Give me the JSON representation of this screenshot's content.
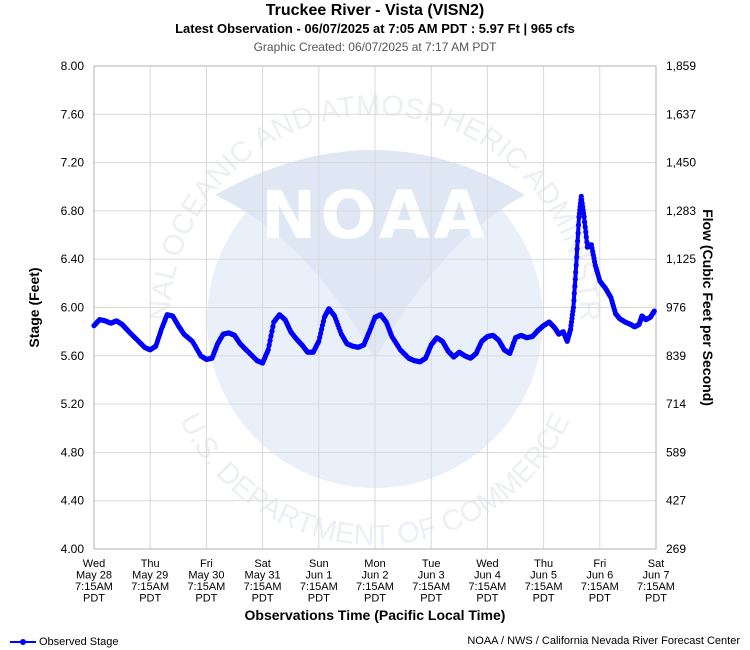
{
  "header": {
    "title": "Truckee River - Vista (VISN2)",
    "subtitle": "Latest Observation - 06/07/2025 at 7:05 AM PDT : 5.97 Ft | 965 cfs",
    "created": "Graphic Created: 06/07/2025 at 7:17 AM PDT"
  },
  "footer": {
    "legend_label": "Observed Stage",
    "credit": "NOAA / NWS / California Nevada River Forecast Center"
  },
  "watermark": {
    "logo_text": "NOAA",
    "ring_top": "NATIONAL OCEANIC AND ATMOSPHERIC ADMINISTRATION",
    "ring_bottom": "U.S. DEPARTMENT OF COMMERCE"
  },
  "colors": {
    "series": "#0000ff",
    "grid": "#d9d9d9",
    "watermark": "#e8eef7"
  },
  "chart_data": {
    "type": "line",
    "xlabel": "Observations Time (Pacific Local Time)",
    "ylabel": "Stage (Feet)",
    "y2label": "Flow (Cubic Feet per Second)",
    "ylim": [
      4.0,
      8.0
    ],
    "yticks": [
      "4.00",
      "4.40",
      "4.80",
      "5.20",
      "5.60",
      "6.00",
      "6.40",
      "6.80",
      "7.20",
      "7.60",
      "8.00"
    ],
    "y2ticks": [
      "269",
      "427",
      "589",
      "714",
      "839",
      "976",
      "1,125",
      "1,283",
      "1,450",
      "1,637",
      "1,859"
    ],
    "xrange_days": [
      0,
      10
    ],
    "xticks": [
      {
        "day": "Wed",
        "date": "May 28",
        "time": "7:15AM",
        "tz": "PDT"
      },
      {
        "day": "Thu",
        "date": "May 29",
        "time": "7:15AM",
        "tz": "PDT"
      },
      {
        "day": "Fri",
        "date": "May 30",
        "time": "7:15AM",
        "tz": "PDT"
      },
      {
        "day": "Sat",
        "date": "May 31",
        "time": "7:15AM",
        "tz": "PDT"
      },
      {
        "day": "Sun",
        "date": "Jun 1",
        "time": "7:15AM",
        "tz": "PDT"
      },
      {
        "day": "Mon",
        "date": "Jun 2",
        "time": "7:15AM",
        "tz": "PDT"
      },
      {
        "day": "Tue",
        "date": "Jun 3",
        "time": "7:15AM",
        "tz": "PDT"
      },
      {
        "day": "Wed",
        "date": "Jun 4",
        "time": "7:15AM",
        "tz": "PDT"
      },
      {
        "day": "Thu",
        "date": "Jun 5",
        "time": "7:15AM",
        "tz": "PDT"
      },
      {
        "day": "Fri",
        "date": "Jun 6",
        "time": "7:15AM",
        "tz": "PDT"
      },
      {
        "day": "Sat",
        "date": "Jun 7",
        "time": "7:15AM",
        "tz": "PDT"
      }
    ],
    "grid": true,
    "legend_position": "bottom-left",
    "series": [
      {
        "name": "Observed Stage",
        "points": [
          [
            0.0,
            5.85
          ],
          [
            0.1,
            5.9
          ],
          [
            0.2,
            5.89
          ],
          [
            0.3,
            5.87
          ],
          [
            0.4,
            5.89
          ],
          [
            0.5,
            5.86
          ],
          [
            0.6,
            5.81
          ],
          [
            0.75,
            5.74
          ],
          [
            0.9,
            5.67
          ],
          [
            1.0,
            5.65
          ],
          [
            1.1,
            5.68
          ],
          [
            1.2,
            5.82
          ],
          [
            1.3,
            5.94
          ],
          [
            1.4,
            5.93
          ],
          [
            1.5,
            5.85
          ],
          [
            1.6,
            5.78
          ],
          [
            1.75,
            5.72
          ],
          [
            1.9,
            5.6
          ],
          [
            2.0,
            5.57
          ],
          [
            2.1,
            5.58
          ],
          [
            2.2,
            5.7
          ],
          [
            2.3,
            5.78
          ],
          [
            2.4,
            5.79
          ],
          [
            2.5,
            5.77
          ],
          [
            2.6,
            5.7
          ],
          [
            2.75,
            5.63
          ],
          [
            2.9,
            5.56
          ],
          [
            3.0,
            5.54
          ],
          [
            3.1,
            5.65
          ],
          [
            3.2,
            5.88
          ],
          [
            3.3,
            5.94
          ],
          [
            3.4,
            5.9
          ],
          [
            3.5,
            5.8
          ],
          [
            3.6,
            5.74
          ],
          [
            3.7,
            5.69
          ],
          [
            3.8,
            5.63
          ],
          [
            3.9,
            5.63
          ],
          [
            4.0,
            5.72
          ],
          [
            4.1,
            5.92
          ],
          [
            4.18,
            5.99
          ],
          [
            4.28,
            5.93
          ],
          [
            4.4,
            5.78
          ],
          [
            4.5,
            5.7
          ],
          [
            4.6,
            5.68
          ],
          [
            4.7,
            5.67
          ],
          [
            4.8,
            5.69
          ],
          [
            4.9,
            5.8
          ],
          [
            5.0,
            5.92
          ],
          [
            5.1,
            5.94
          ],
          [
            5.2,
            5.88
          ],
          [
            5.3,
            5.76
          ],
          [
            5.45,
            5.65
          ],
          [
            5.6,
            5.58
          ],
          [
            5.7,
            5.56
          ],
          [
            5.8,
            5.55
          ],
          [
            5.9,
            5.58
          ],
          [
            6.0,
            5.69
          ],
          [
            6.1,
            5.75
          ],
          [
            6.2,
            5.72
          ],
          [
            6.3,
            5.64
          ],
          [
            6.4,
            5.59
          ],
          [
            6.5,
            5.63
          ],
          [
            6.6,
            5.6
          ],
          [
            6.7,
            5.58
          ],
          [
            6.8,
            5.62
          ],
          [
            6.9,
            5.72
          ],
          [
            7.0,
            5.76
          ],
          [
            7.1,
            5.77
          ],
          [
            7.2,
            5.73
          ],
          [
            7.3,
            5.65
          ],
          [
            7.4,
            5.62
          ],
          [
            7.5,
            5.75
          ],
          [
            7.6,
            5.77
          ],
          [
            7.7,
            5.75
          ],
          [
            7.8,
            5.76
          ],
          [
            7.9,
            5.81
          ],
          [
            8.0,
            5.85
          ],
          [
            8.1,
            5.88
          ],
          [
            8.2,
            5.83
          ],
          [
            8.27,
            5.78
          ],
          [
            8.35,
            5.8
          ],
          [
            8.42,
            5.72
          ],
          [
            8.48,
            5.82
          ],
          [
            8.53,
            6.0
          ],
          [
            8.58,
            6.35
          ],
          [
            8.63,
            6.75
          ],
          [
            8.67,
            6.92
          ],
          [
            8.72,
            6.75
          ],
          [
            8.78,
            6.5
          ],
          [
            8.85,
            6.52
          ],
          [
            8.92,
            6.35
          ],
          [
            9.0,
            6.22
          ],
          [
            9.1,
            6.16
          ],
          [
            9.2,
            6.08
          ],
          [
            9.28,
            5.95
          ],
          [
            9.35,
            5.91
          ],
          [
            9.45,
            5.88
          ],
          [
            9.55,
            5.86
          ],
          [
            9.62,
            5.84
          ],
          [
            9.7,
            5.86
          ],
          [
            9.75,
            5.93
          ],
          [
            9.82,
            5.9
          ],
          [
            9.9,
            5.92
          ],
          [
            9.97,
            5.97
          ]
        ]
      }
    ]
  }
}
